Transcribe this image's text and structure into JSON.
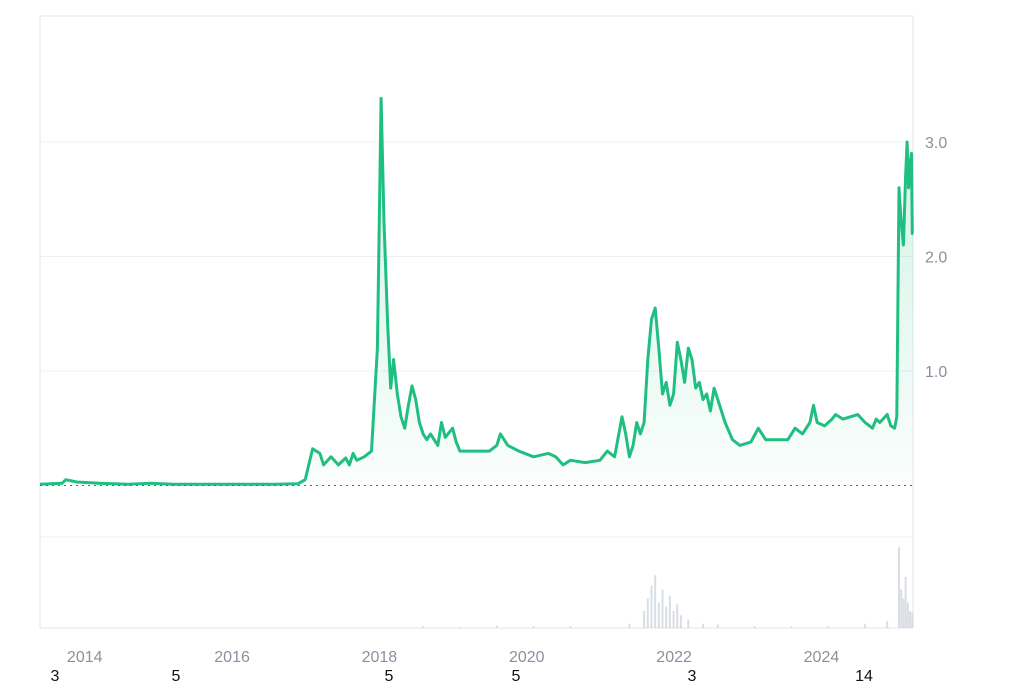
{
  "chart_data": {
    "type": "area",
    "x_ticks": [
      "2014",
      "2016",
      "2018",
      "2020",
      "2022",
      "2024"
    ],
    "y_ticks": [
      "1.0",
      "2.0",
      "3.0"
    ],
    "ylim": [
      -0.45,
      4.1
    ],
    "xlim": [
      2013.8,
      2025.65
    ],
    "grid": true,
    "series": [
      {
        "color": "#1fbf82",
        "points": [
          [
            2013.8,
            0.01
          ],
          [
            2014.1,
            0.02
          ],
          [
            2014.15,
            0.05
          ],
          [
            2014.3,
            0.03
          ],
          [
            2014.6,
            0.02
          ],
          [
            2015.0,
            0.01
          ],
          [
            2015.3,
            0.02
          ],
          [
            2015.6,
            0.01
          ],
          [
            2016.0,
            0.01
          ],
          [
            2016.5,
            0.01
          ],
          [
            2017.0,
            0.01
          ],
          [
            2017.3,
            0.015
          ],
          [
            2017.4,
            0.05
          ],
          [
            2017.5,
            0.32
          ],
          [
            2017.6,
            0.28
          ],
          [
            2017.65,
            0.18
          ],
          [
            2017.75,
            0.25
          ],
          [
            2017.85,
            0.18
          ],
          [
            2017.95,
            0.24
          ],
          [
            2018.0,
            0.18
          ],
          [
            2018.05,
            0.28
          ],
          [
            2018.1,
            0.22
          ],
          [
            2018.2,
            0.25
          ],
          [
            2018.3,
            0.3
          ],
          [
            2018.38,
            1.2
          ],
          [
            2018.43,
            3.38
          ],
          [
            2018.47,
            2.3
          ],
          [
            2018.52,
            1.4
          ],
          [
            2018.56,
            0.85
          ],
          [
            2018.6,
            1.1
          ],
          [
            2018.65,
            0.8
          ],
          [
            2018.7,
            0.6
          ],
          [
            2018.75,
            0.5
          ],
          [
            2018.8,
            0.7
          ],
          [
            2018.85,
            0.87
          ],
          [
            2018.9,
            0.75
          ],
          [
            2018.95,
            0.55
          ],
          [
            2019.0,
            0.45
          ],
          [
            2019.05,
            0.4
          ],
          [
            2019.1,
            0.45
          ],
          [
            2019.2,
            0.35
          ],
          [
            2019.25,
            0.55
          ],
          [
            2019.3,
            0.42
          ],
          [
            2019.4,
            0.5
          ],
          [
            2019.45,
            0.38
          ],
          [
            2019.5,
            0.3
          ],
          [
            2019.7,
            0.3
          ],
          [
            2019.9,
            0.3
          ],
          [
            2020.0,
            0.35
          ],
          [
            2020.05,
            0.45
          ],
          [
            2020.15,
            0.35
          ],
          [
            2020.3,
            0.3
          ],
          [
            2020.5,
            0.25
          ],
          [
            2020.7,
            0.28
          ],
          [
            2020.8,
            0.25
          ],
          [
            2020.9,
            0.18
          ],
          [
            2021.0,
            0.22
          ],
          [
            2021.2,
            0.2
          ],
          [
            2021.4,
            0.22
          ],
          [
            2021.5,
            0.3
          ],
          [
            2021.6,
            0.25
          ],
          [
            2021.7,
            0.6
          ],
          [
            2021.75,
            0.45
          ],
          [
            2021.8,
            0.25
          ],
          [
            2021.85,
            0.35
          ],
          [
            2021.9,
            0.55
          ],
          [
            2021.95,
            0.45
          ],
          [
            2022.0,
            0.55
          ],
          [
            2022.05,
            1.1
          ],
          [
            2022.1,
            1.45
          ],
          [
            2022.15,
            1.55
          ],
          [
            2022.2,
            1.2
          ],
          [
            2022.25,
            0.8
          ],
          [
            2022.3,
            0.9
          ],
          [
            2022.35,
            0.7
          ],
          [
            2022.4,
            0.8
          ],
          [
            2022.45,
            1.25
          ],
          [
            2022.5,
            1.1
          ],
          [
            2022.55,
            0.9
          ],
          [
            2022.6,
            1.2
          ],
          [
            2022.65,
            1.1
          ],
          [
            2022.7,
            0.85
          ],
          [
            2022.75,
            0.9
          ],
          [
            2022.8,
            0.75
          ],
          [
            2022.85,
            0.8
          ],
          [
            2022.9,
            0.65
          ],
          [
            2022.95,
            0.85
          ],
          [
            2023.0,
            0.75
          ],
          [
            2023.1,
            0.55
          ],
          [
            2023.2,
            0.4
          ],
          [
            2023.3,
            0.35
          ],
          [
            2023.45,
            0.38
          ],
          [
            2023.55,
            0.5
          ],
          [
            2023.65,
            0.4
          ],
          [
            2023.8,
            0.4
          ],
          [
            2023.95,
            0.4
          ],
          [
            2024.05,
            0.5
          ],
          [
            2024.15,
            0.45
          ],
          [
            2024.25,
            0.55
          ],
          [
            2024.3,
            0.7
          ],
          [
            2024.35,
            0.55
          ],
          [
            2024.45,
            0.52
          ],
          [
            2024.55,
            0.58
          ],
          [
            2024.6,
            0.62
          ],
          [
            2024.7,
            0.58
          ],
          [
            2024.8,
            0.6
          ],
          [
            2024.9,
            0.62
          ],
          [
            2025.0,
            0.55
          ],
          [
            2025.1,
            0.5
          ],
          [
            2025.15,
            0.58
          ],
          [
            2025.2,
            0.55
          ],
          [
            2025.3,
            0.62
          ],
          [
            2025.35,
            0.52
          ],
          [
            2025.4,
            0.5
          ],
          [
            2025.43,
            0.6
          ],
          [
            2025.46,
            2.6
          ],
          [
            2025.49,
            2.3
          ],
          [
            2025.52,
            2.1
          ],
          [
            2025.55,
            2.7
          ],
          [
            2025.57,
            3.0
          ],
          [
            2025.59,
            2.6
          ],
          [
            2025.61,
            2.8
          ],
          [
            2025.63,
            2.9
          ],
          [
            2025.64,
            2.2
          ],
          [
            2025.65,
            2.2
          ]
        ]
      }
    ],
    "volume": [
      [
        2019.0,
        0.02
      ],
      [
        2019.5,
        0.01
      ],
      [
        2020.0,
        0.03
      ],
      [
        2020.5,
        0.02
      ],
      [
        2021.0,
        0.02
      ],
      [
        2021.8,
        0.05
      ],
      [
        2022.0,
        0.2
      ],
      [
        2022.05,
        0.35
      ],
      [
        2022.1,
        0.5
      ],
      [
        2022.15,
        0.62
      ],
      [
        2022.2,
        0.3
      ],
      [
        2022.25,
        0.45
      ],
      [
        2022.3,
        0.25
      ],
      [
        2022.35,
        0.38
      ],
      [
        2022.4,
        0.2
      ],
      [
        2022.45,
        0.28
      ],
      [
        2022.5,
        0.15
      ],
      [
        2022.6,
        0.1
      ],
      [
        2022.8,
        0.05
      ],
      [
        2023.0,
        0.04
      ],
      [
        2023.5,
        0.02
      ],
      [
        2024.0,
        0.02
      ],
      [
        2024.5,
        0.02
      ],
      [
        2025.0,
        0.05
      ],
      [
        2025.3,
        0.08
      ],
      [
        2025.46,
        0.95
      ],
      [
        2025.49,
        0.45
      ],
      [
        2025.52,
        0.35
      ],
      [
        2025.55,
        0.6
      ],
      [
        2025.58,
        0.3
      ],
      [
        2025.61,
        0.2
      ],
      [
        2025.64,
        0.18
      ]
    ]
  },
  "period_badges": [
    "3",
    "5",
    "5",
    "5",
    "3",
    "14"
  ]
}
